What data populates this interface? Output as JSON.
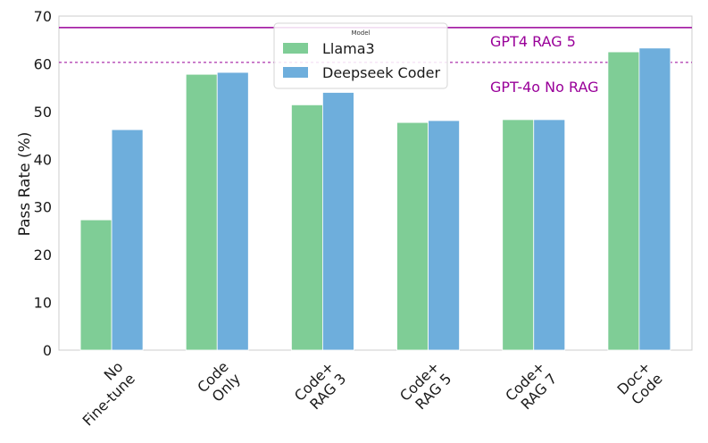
{
  "chart_data": {
    "type": "bar",
    "title": "",
    "xlabel": "",
    "ylabel": "Pass Rate (%)",
    "ylim": [
      0,
      70
    ],
    "yticks": [
      0,
      10,
      20,
      30,
      40,
      50,
      60,
      70
    ],
    "grid": false,
    "categories": [
      [
        "No",
        "Fine-tune"
      ],
      [
        "Code",
        "Only"
      ],
      [
        "Code+",
        "RAG 3"
      ],
      [
        "Code+",
        "RAG 5"
      ],
      [
        "Code+",
        "RAG 7"
      ],
      [
        "Doc+",
        "Code"
      ]
    ],
    "series": [
      {
        "name": "Llama3",
        "color": "#7fcd96",
        "values": [
          27.3,
          57.8,
          51.4,
          47.7,
          48.3,
          62.5
        ]
      },
      {
        "name": "Deepseek Coder",
        "color": "#6eaedc",
        "values": [
          46.2,
          58.2,
          54.0,
          48.1,
          48.3,
          63.3
        ]
      }
    ],
    "legend": {
      "title": "Model",
      "position": "top-center"
    },
    "reference_lines": [
      {
        "label": "GPT4 RAG 5",
        "value": 67.6,
        "style": "solid",
        "color": "#990099"
      },
      {
        "label": "GPT-4o No RAG",
        "value": 60.3,
        "style": "dashed",
        "color": "#990099"
      }
    ]
  }
}
